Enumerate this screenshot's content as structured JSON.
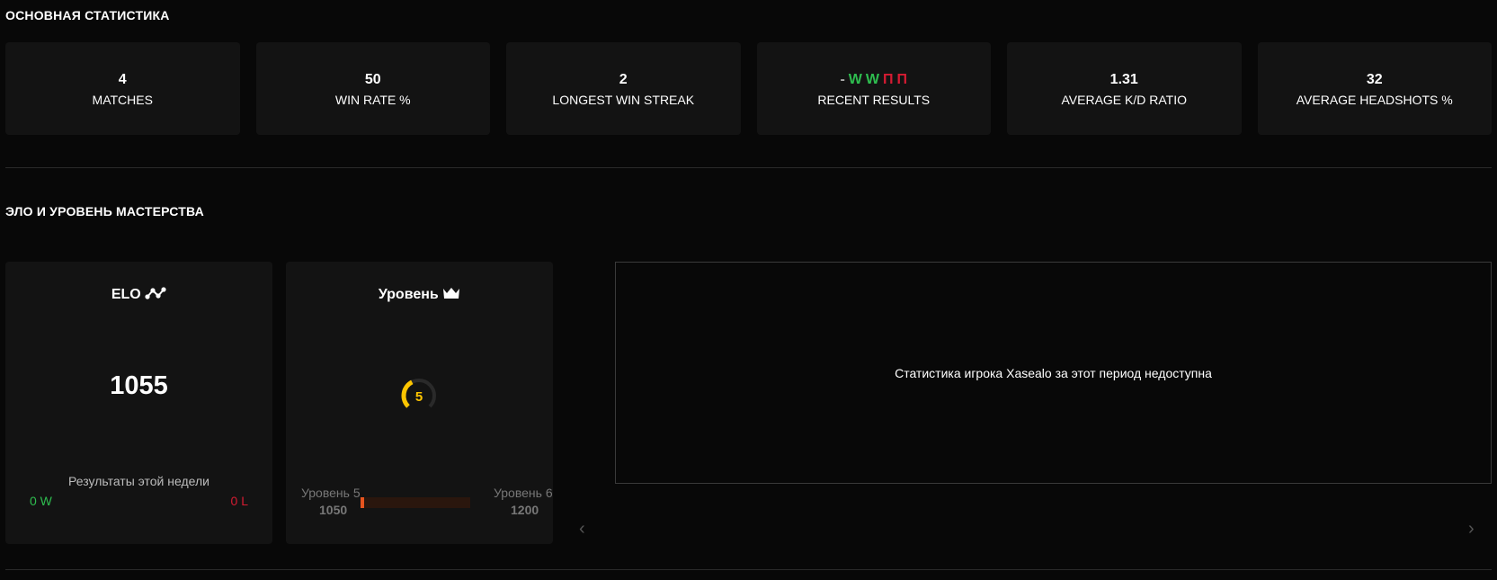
{
  "main_stats": {
    "title": "ОСНОВНАЯ СТАТИСТИКА",
    "cards": [
      {
        "value": "4",
        "label": "MATCHES"
      },
      {
        "value": "50",
        "label": "WIN RATE %"
      },
      {
        "value": "2",
        "label": "LONGEST WIN STREAK"
      },
      {
        "value": "",
        "label": "RECENT RESULTS"
      },
      {
        "value": "1.31",
        "label": "AVERAGE K/D RATIO"
      },
      {
        "value": "32",
        "label": "AVERAGE HEADSHOTS %"
      }
    ],
    "recent_results": [
      {
        "text": "-",
        "color": "#aaaaaa"
      },
      {
        "text": "W",
        "color": "#2ebd4f"
      },
      {
        "text": "W",
        "color": "#2ebd4f"
      },
      {
        "text": "П",
        "color": "#d51b32"
      },
      {
        "text": "П",
        "color": "#d51b32"
      }
    ]
  },
  "elo_section": {
    "title": "ЭЛО И УРОВЕНЬ МАСТЕРСТВА",
    "elo": {
      "title": "ELO",
      "icon": "trend-line-icon",
      "value": "1055",
      "week_label": "Результаты этой недели",
      "wins": "0 W",
      "losses": "0 L"
    },
    "level": {
      "title": "Уровень",
      "icon": "crown-icon",
      "level": "5",
      "level_color": "#fdc500",
      "ring_progress": 0.4,
      "from_label": "Уровень 5",
      "from_elo": "1050",
      "to_label": "Уровень 6",
      "to_elo": "1200",
      "progress_fraction": 0.033,
      "progress_color": "#e8541e"
    },
    "chart_message": "Статистика игрока Xasealo за этот период недоступна",
    "prev_icon": "chevron-left-icon",
    "next_icon": "chevron-right-icon"
  }
}
